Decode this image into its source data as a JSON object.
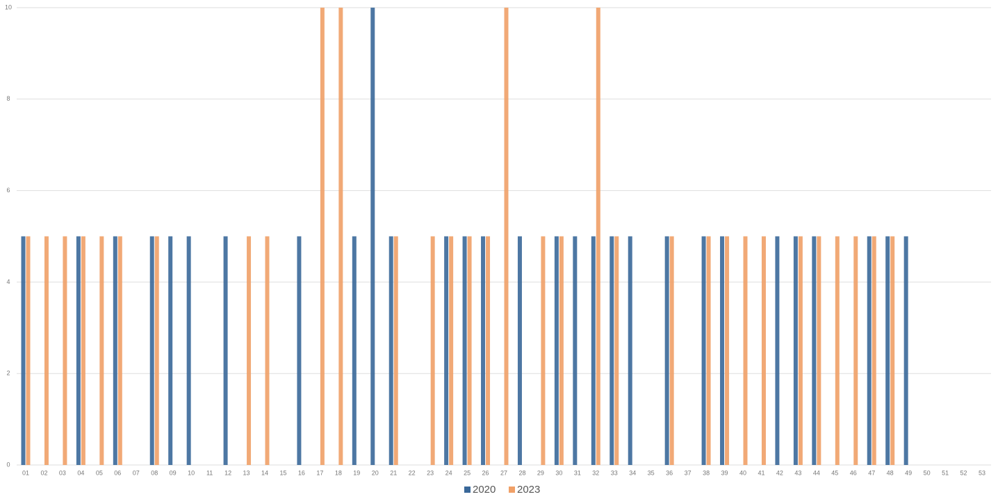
{
  "chart_data": {
    "type": "bar",
    "categories": [
      "01",
      "02",
      "03",
      "04",
      "05",
      "06",
      "07",
      "08",
      "09",
      "10",
      "11",
      "12",
      "13",
      "14",
      "15",
      "16",
      "17",
      "18",
      "19",
      "20",
      "21",
      "22",
      "23",
      "24",
      "25",
      "26",
      "27",
      "28",
      "29",
      "30",
      "31",
      "32",
      "33",
      "34",
      "35",
      "36",
      "37",
      "38",
      "39",
      "40",
      "41",
      "42",
      "43",
      "44",
      "45",
      "46",
      "47",
      "48",
      "49",
      "50",
      "51",
      "52",
      "53"
    ],
    "series": [
      {
        "name": "2020",
        "color": "#3a6899",
        "values": [
          5,
          0,
          0,
          5,
          0,
          5,
          0,
          5,
          5,
          5,
          0,
          5,
          0,
          0,
          0,
          5,
          0,
          0,
          5,
          10,
          5,
          0,
          0,
          5,
          5,
          5,
          0,
          5,
          0,
          5,
          5,
          5,
          5,
          5,
          0,
          5,
          0,
          5,
          5,
          0,
          0,
          5,
          5,
          5,
          0,
          0,
          5,
          5,
          5,
          0,
          0,
          0,
          0
        ]
      },
      {
        "name": "2023",
        "color": "#f0a067",
        "values": [
          5,
          5,
          5,
          5,
          5,
          5,
          0,
          5,
          0,
          0,
          0,
          0,
          5,
          5,
          0,
          0,
          10,
          10,
          0,
          0,
          5,
          0,
          5,
          5,
          5,
          5,
          10,
          0,
          5,
          5,
          0,
          10,
          5,
          0,
          0,
          5,
          0,
          5,
          5,
          5,
          5,
          0,
          5,
          5,
          5,
          5,
          5,
          5,
          0,
          0,
          0,
          0,
          0
        ]
      }
    ],
    "ylim": [
      0,
      10
    ],
    "yticks": [
      0,
      2,
      4,
      6,
      8,
      10
    ],
    "grid": true,
    "legend": "bottom"
  }
}
